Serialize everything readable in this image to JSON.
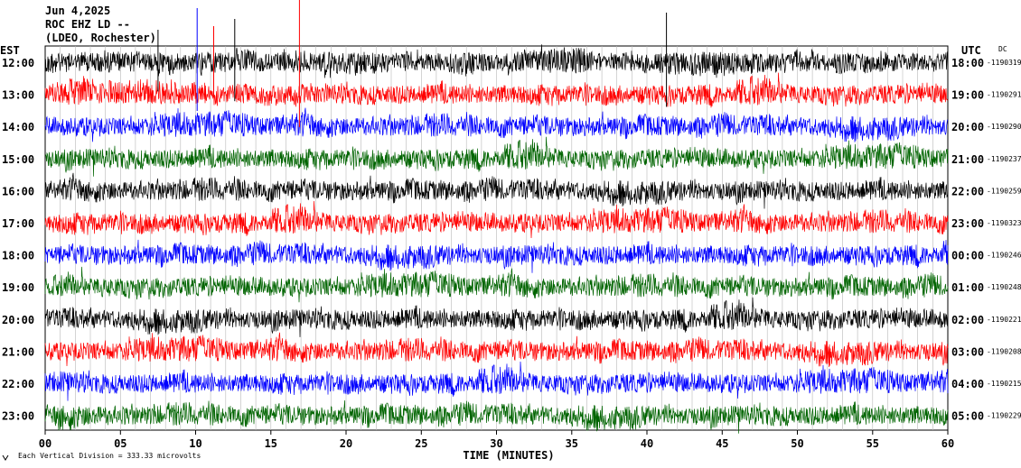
{
  "header": {
    "date": "Jun 4,2025",
    "station": "ROC EHZ LD --",
    "network": "(LDEO, Rochester)"
  },
  "left_zone": "EST",
  "right_zone": "UTC",
  "dc_label": "DC",
  "xlabel": "TIME (MINUTES)",
  "footnote": "Each Vertical Division =  333.33 microvolts",
  "footnote_icon": "scale-icon",
  "trace_colors": [
    "#000000",
    "#ff0000",
    "#0000ff",
    "#006400"
  ],
  "chart_data": {
    "type": "line",
    "x_ticks": [
      "00",
      "05",
      "10",
      "15",
      "20",
      "25",
      "30",
      "35",
      "40",
      "45",
      "50",
      "55",
      "60"
    ],
    "xlim": [
      0,
      60
    ],
    "rows": [
      {
        "est": "12:00",
        "utc": "18:00",
        "dc": "-1190319"
      },
      {
        "est": "13:00",
        "utc": "19:00",
        "dc": "-1190291"
      },
      {
        "est": "14:00",
        "utc": "20:00",
        "dc": "-1190290"
      },
      {
        "est": "15:00",
        "utc": "21:00",
        "dc": "-1190237"
      },
      {
        "est": "16:00",
        "utc": "22:00",
        "dc": "-1190259"
      },
      {
        "est": "17:00",
        "utc": "23:00",
        "dc": "-1190323"
      },
      {
        "est": "18:00",
        "utc": "00:00",
        "dc": "-1190246"
      },
      {
        "est": "19:00",
        "utc": "01:00",
        "dc": "-1190248"
      },
      {
        "est": "20:00",
        "utc": "02:00",
        "dc": "-1190221"
      },
      {
        "est": "21:00",
        "utc": "03:00",
        "dc": "-1190208"
      },
      {
        "est": "22:00",
        "utc": "04:00",
        "dc": "-1190215"
      },
      {
        "est": "23:00",
        "utc": "05:00",
        "dc": "-1190229"
      }
    ]
  }
}
